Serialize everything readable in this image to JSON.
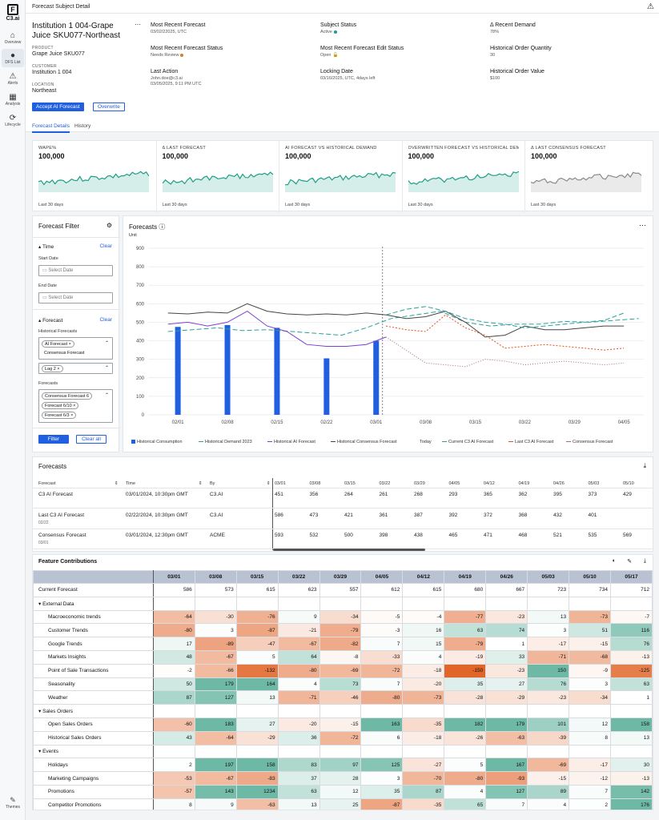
{
  "app": {
    "logo": "C3.ai",
    "header_title": "Forecast Subject Detail"
  },
  "nav": [
    {
      "label": "Overview",
      "icon": "⌂"
    },
    {
      "label": "DFS List",
      "icon": "●"
    },
    {
      "label": "Alerts",
      "icon": "⚠"
    },
    {
      "label": "Analysis",
      "icon": "▦"
    },
    {
      "label": "Lifecycle",
      "icon": "⟳"
    }
  ],
  "themes_label": "Themes",
  "subject": {
    "title": "Institution 1 004-Grape Juice SKU077-Northeast",
    "product_label": "PRODUCT",
    "product": "Grape Juice SKU077",
    "customer_label": "CUSTOMER",
    "customer": "Institution 1 004",
    "location_label": "LOCATION",
    "location": "Northeast",
    "accept_button": "Accept AI Forecast",
    "overwrite_button": "Overwrite"
  },
  "fields": [
    {
      "label": "Most Recent Forecast",
      "value": "03/02/22025, UTC"
    },
    {
      "label": "Subject Status",
      "value": "Active"
    },
    {
      "label": "Δ Recent Demand",
      "value": "78%"
    },
    {
      "label": "Most Recent Forecast Status",
      "value": "Needs Review"
    },
    {
      "label": "Most Recent Forecast Edit Status",
      "value": "Open"
    },
    {
      "label": "Historical Order Quantity",
      "value": "30"
    },
    {
      "label": "Last Action",
      "value": "John.doe@c3.ai",
      "value2": "03/05/2025, 9:11 PM UTC"
    },
    {
      "label": "Locking Date",
      "value": "03/16/2025, UTC, 4days left"
    },
    {
      "label": "Historical Order Value",
      "value": "$100"
    }
  ],
  "tabs": [
    "Forecast Details",
    "History"
  ],
  "kpis": [
    {
      "title": "WAPE%",
      "value": "100,000",
      "foot": "Last 30 days",
      "color": "#1e9e86"
    },
    {
      "title": "Δ LAST FORECAST",
      "value": "100,000",
      "foot": "Last 30 days",
      "color": "#1e9e86"
    },
    {
      "title": "AI FORECAST VS HISTORICAL DEMAND",
      "value": "100,000",
      "foot": "Last 30 days",
      "color": "#1e9e86"
    },
    {
      "title": "OVERWRITTEN FORECAST VS HISTORICAL DEMAND",
      "value": "100,000",
      "foot": "Last 30 days",
      "color": "#1e9e86"
    },
    {
      "title": "Δ LAST CONSENSUS FORECAST",
      "value": "100,000",
      "foot": "Last 30 days",
      "color": "#888888"
    }
  ],
  "filter": {
    "title": "Forecast Filter",
    "time": "Time",
    "clear": "Clear",
    "start_date": "Start Date",
    "end_date": "End Date",
    "date_placeholder": "Select Date",
    "forecast": "Forecast",
    "historical_forecasts": "Historical Forecasts",
    "chips1": [
      "AI Forecast",
      "Consensus Forecast"
    ],
    "lag": "Lag 2",
    "forecasts": "Forecasts",
    "chips2": [
      "Consensus Forecast 6",
      "Forecast 6/10",
      "Forecast 6/3"
    ],
    "filter_button": "Filter",
    "clear_all": "Clear all"
  },
  "chart_data": {
    "type": "line",
    "title": "Forecasts",
    "ylabel": "Unit",
    "ylim": [
      0,
      900
    ],
    "yticks": [
      0,
      100,
      200,
      300,
      400,
      500,
      600,
      700,
      800,
      900
    ],
    "xticks": [
      "02/01",
      "02/08",
      "02/15",
      "02/22",
      "03/01",
      "03/08",
      "03/15",
      "03/22",
      "03/29",
      "04/05"
    ],
    "today": "Today",
    "bars": {
      "name": "Historical Consumption",
      "color": "#1f5fe0",
      "x": [
        0.6,
        1.6,
        2.6,
        3.6,
        4.6
      ],
      "values": [
        475,
        485,
        470,
        305,
        400
      ]
    },
    "series": [
      {
        "name": "Historical Demand 2023",
        "color": "#2aa198",
        "dash": "6,3",
        "x": [
          0.4,
          0.9,
          1.4,
          1.9,
          2.4,
          2.9,
          3.4,
          3.9,
          4.4,
          4.9,
          5.4,
          5.9,
          6.4,
          6.9,
          7.4,
          7.9,
          8.4,
          8.9,
          9.4,
          9.9
        ],
        "values": [
          450,
          460,
          470,
          455,
          460,
          450,
          440,
          430,
          470,
          520,
          540,
          560,
          500,
          480,
          490,
          490,
          505,
          500,
          510,
          520
        ]
      },
      {
        "name": "Historical AI Forecast",
        "color": "#7b3fd4",
        "dash": "",
        "x": [
          0.4,
          0.8,
          1.2,
          1.6,
          2.0,
          2.4,
          2.8,
          3.2,
          3.6,
          4.0,
          4.4,
          4.8
        ],
        "values": [
          490,
          500,
          480,
          500,
          560,
          480,
          450,
          380,
          370,
          370,
          380,
          420
        ]
      },
      {
        "name": "Historical Consensus Forecast",
        "color": "#444444",
        "dash": "",
        "x": [
          0.4,
          0.8,
          1.2,
          1.6,
          2.0,
          2.4,
          2.8,
          3.2,
          3.6,
          4.0,
          4.4,
          4.8,
          5.2,
          5.6,
          6.0,
          6.4,
          6.8,
          7.2,
          7.6,
          8.0,
          8.4,
          8.8,
          9.2,
          9.6
        ],
        "values": [
          550,
          545,
          555,
          550,
          600,
          560,
          545,
          540,
          545,
          540,
          550,
          540,
          520,
          530,
          560,
          500,
          420,
          430,
          480,
          460,
          460,
          470,
          480,
          480
        ]
      },
      {
        "name": "Current C3 AI Forecast",
        "color": "#2aa198",
        "dash": "6,3",
        "x": [
          4.8,
          5.2,
          5.6,
          6.0,
          6.4,
          6.8,
          7.2,
          7.6,
          8.0,
          8.4,
          8.8,
          9.2,
          9.6
        ],
        "values": [
          540,
          570,
          585,
          560,
          520,
          500,
          490,
          470,
          480,
          490,
          500,
          510,
          550
        ]
      },
      {
        "name": "Last C3 AI Forecast",
        "color": "#d9531e",
        "dash": "2,2",
        "x": [
          4.8,
          5.2,
          5.6,
          6.0,
          6.4,
          6.8,
          7.2,
          7.6,
          8.0,
          8.4,
          8.8,
          9.2,
          9.6
        ],
        "values": [
          480,
          460,
          450,
          540,
          470,
          430,
          360,
          370,
          380,
          370,
          360,
          350,
          360
        ]
      },
      {
        "name": "Consensus Forecast",
        "color": "#a07070",
        "dash": "1,2",
        "x": [
          4.8,
          5.2,
          5.6,
          6.0,
          6.4,
          6.8,
          7.2,
          7.6,
          8.0,
          8.4,
          8.8,
          9.2,
          9.6
        ],
        "values": [
          420,
          350,
          280,
          270,
          260,
          300,
          290,
          270,
          280,
          290,
          280,
          270,
          280
        ]
      }
    ]
  },
  "forecasts_table": {
    "title": "Forecasts",
    "cols": [
      "Forecast",
      "Time",
      "By"
    ],
    "dates": [
      "03/01",
      "03/08",
      "03/15",
      "03/22",
      "03/29",
      "04/05",
      "04/12",
      "04/19",
      "04/26",
      "05/03",
      "05/10"
    ],
    "rows": [
      {
        "name": "C3 AI Forecast",
        "sub": "",
        "time": "03/01/2024, 10:30pm GMT",
        "by": "C3.AI",
        "vals": [
          "451",
          "356",
          "264",
          "261",
          "268",
          "293",
          "365",
          "362",
          "395",
          "373",
          "429"
        ]
      },
      {
        "name": "Last C3 AI Forecast",
        "sub": "02/22",
        "time": "02/22/2024, 10:30pm GMT",
        "by": "C3.AI",
        "vals": [
          "586",
          "473",
          "421",
          "361",
          "387",
          "392",
          "372",
          "368",
          "432",
          "401",
          ""
        ]
      },
      {
        "name": "Consensus Forecast",
        "sub": "03/01",
        "time": "03/01/2024, 12:30pm GMT",
        "by": "ACME",
        "vals": [
          "593",
          "532",
          "500",
          "398",
          "438",
          "465",
          "471",
          "468",
          "521",
          "535",
          "569"
        ]
      }
    ]
  },
  "contrib": {
    "title": "Feature Contributions",
    "dates": [
      "03/01",
      "03/08",
      "03/15",
      "03/22",
      "03/29",
      "04/05",
      "04/12",
      "04/19",
      "04/26",
      "05/03",
      "05/10",
      "05/17"
    ],
    "rows": [
      {
        "name": "Current Forecast",
        "type": "cur",
        "vals": [
          586,
          573,
          615,
          623,
          557,
          612,
          615,
          680,
          667,
          723,
          734,
          712
        ]
      },
      {
        "name": "External Data",
        "type": "grp"
      },
      {
        "name": "Macroeconomic trends",
        "type": "sub",
        "vals": [
          -64,
          -30,
          -76,
          9,
          -34,
          -5,
          -4,
          -77,
          -23,
          13,
          -73,
          -7
        ]
      },
      {
        "name": "Customer Trends",
        "type": "sub",
        "vals": [
          -80,
          3,
          -87,
          -21,
          -79,
          -3,
          16,
          63,
          74,
          3,
          51,
          116
        ]
      },
      {
        "name": "Google Trends",
        "type": "sub",
        "vals": [
          17,
          -89,
          -47,
          -67,
          -82,
          7,
          15,
          -79,
          1,
          -17,
          -15,
          76
        ]
      },
      {
        "name": "Markets Insights",
        "type": "sub",
        "vals": [
          48,
          -67,
          5,
          64,
          -8,
          -33,
          4,
          -19,
          33,
          -71,
          -68,
          -13
        ]
      },
      {
        "name": "Point of Sale Transactions",
        "type": "sub",
        "vals": [
          -2,
          -66,
          -132,
          -80,
          -69,
          -72,
          -18,
          -150,
          -23,
          150,
          -9,
          -125
        ]
      },
      {
        "name": "Seasonality",
        "type": "sub",
        "vals": [
          50,
          179,
          164,
          4,
          73,
          7,
          -20,
          35,
          27,
          76,
          3,
          63
        ]
      },
      {
        "name": "Weather",
        "type": "sub",
        "vals": [
          87,
          127,
          13,
          -71,
          -46,
          -80,
          -73,
          -28,
          -29,
          -23,
          -34,
          1
        ]
      },
      {
        "name": "Sales Orders",
        "type": "grp"
      },
      {
        "name": "Open Sales Orders",
        "type": "sub",
        "vals": [
          -60,
          183,
          27,
          -20,
          -15,
          163,
          -35,
          182,
          179,
          101,
          12,
          158
        ]
      },
      {
        "name": "Historical Sales Orders",
        "type": "sub",
        "vals": [
          43,
          -64,
          -29,
          36,
          -72,
          6,
          -18,
          -26,
          -63,
          -39,
          8,
          13
        ]
      },
      {
        "name": "Events",
        "type": "grp"
      },
      {
        "name": "Holidays",
        "type": "sub",
        "vals": [
          2,
          197,
          158,
          83,
          97,
          125,
          -27,
          5,
          167,
          -69,
          -17,
          30
        ]
      },
      {
        "name": "Marketing Campaigns",
        "type": "sub",
        "vals": [
          -53,
          -67,
          -83,
          37,
          28,
          3,
          -70,
          -80,
          -93,
          -15,
          -12,
          -13
        ]
      },
      {
        "name": "Promotions",
        "type": "sub",
        "vals": [
          -57,
          143,
          1234,
          63,
          12,
          35,
          87,
          4,
          127,
          89,
          7,
          142
        ]
      },
      {
        "name": "Competitor Promotions",
        "type": "sub",
        "vals": [
          8,
          9,
          -63,
          13,
          25,
          -87,
          -35,
          65,
          7,
          4,
          2,
          176
        ]
      }
    ]
  }
}
